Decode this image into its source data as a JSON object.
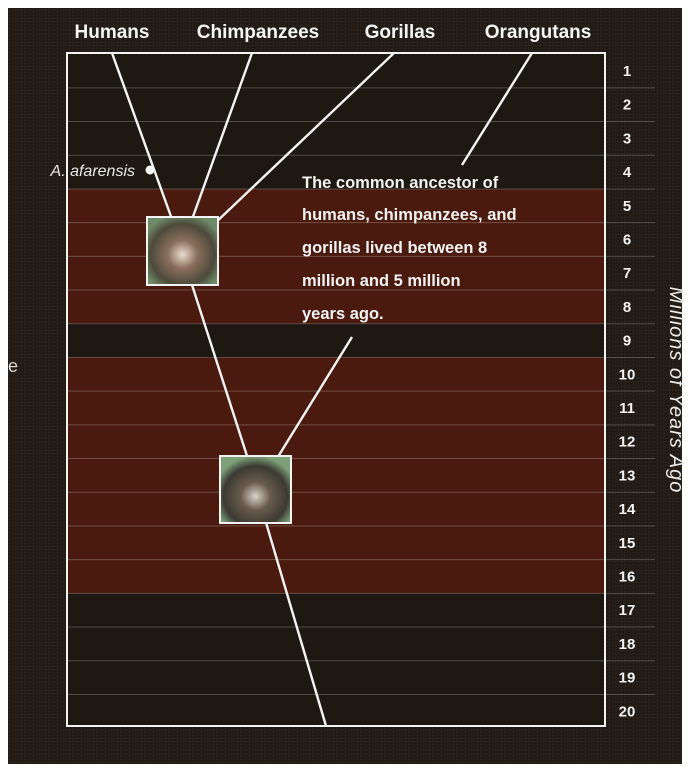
{
  "top_labels": [
    "Humans",
    "Chimpanzees",
    "Gorillas",
    "Orangutans"
  ],
  "species_label": "A. afarensis",
  "axis": {
    "title": "Millions of Years Ago",
    "ticks": [
      "1",
      "2",
      "3",
      "4",
      "5",
      "6",
      "7",
      "8",
      "9",
      "10",
      "11",
      "12",
      "13",
      "14",
      "15",
      "16",
      "17",
      "18",
      "19",
      "20"
    ]
  },
  "bands": [
    {
      "from": 4.5,
      "to": 8.5,
      "color": "#4b1a0e"
    },
    {
      "from": 9.5,
      "to": 16.5,
      "color": "#4b1a0e"
    }
  ],
  "annotation": {
    "lines": [
      "The common ancestor of",
      "humans, chimpanzees, and",
      "gorillas lived between 8",
      "million and 5 million",
      "years ago."
    ]
  },
  "nodes": [
    {
      "name": "human-chimp-gorilla-ancestor",
      "mya": 6.5
    },
    {
      "name": "great-ape-ancestor",
      "mya": 13.5
    }
  ],
  "edge_fragment": "e"
}
